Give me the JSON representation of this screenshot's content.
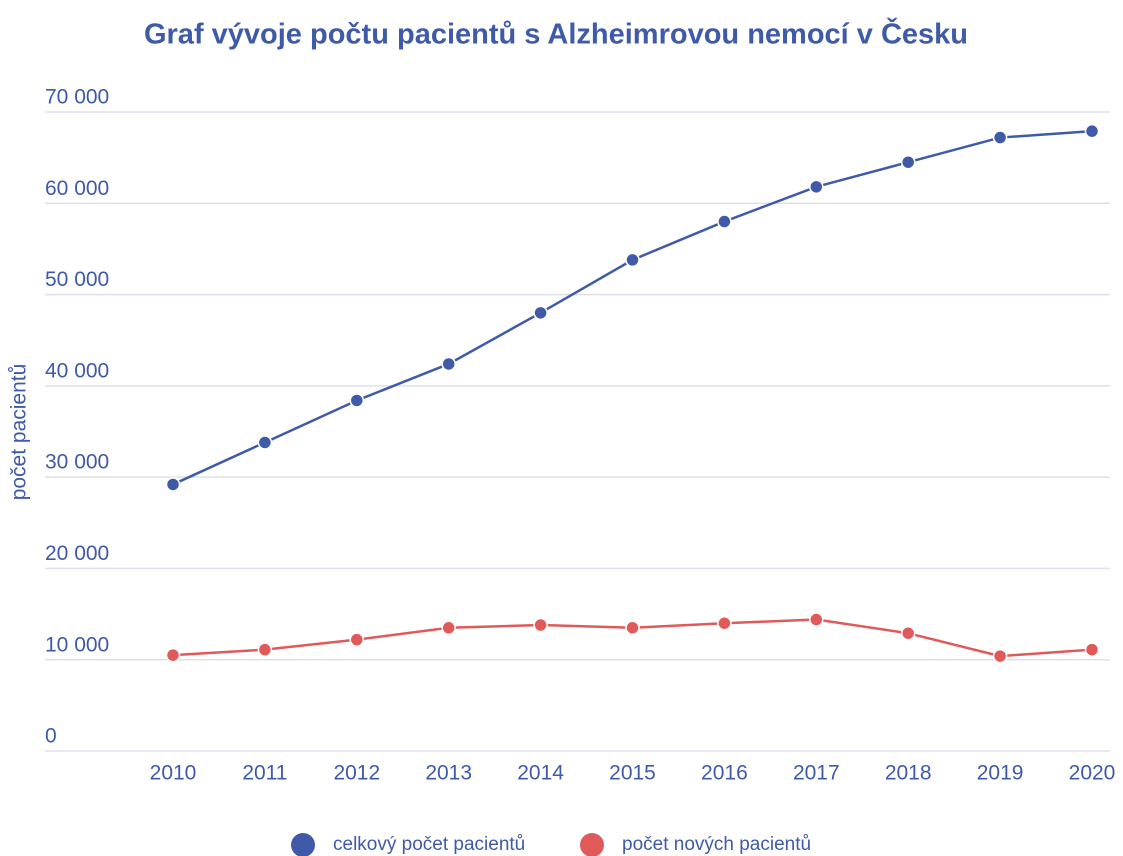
{
  "chart_data": {
    "type": "line",
    "title": "Graf vývoje počtu pacientů s Alzheimrovou nemocí v Česku",
    "y_label": "počet pacientů",
    "categories": [
      "2010",
      "2011",
      "2012",
      "2013",
      "2014",
      "2015",
      "2016",
      "2017",
      "2018",
      "2019",
      "2020"
    ],
    "series": [
      {
        "name": "celkový počet pacientů",
        "color": "#3f5aa8",
        "values": [
          29200,
          33800,
          38400,
          42400,
          48000,
          53800,
          58000,
          61800,
          64500,
          67200,
          67900
        ]
      },
      {
        "name": "počet nových pacientů",
        "color": "#e05a5a",
        "values": [
          10500,
          11100,
          12200,
          13500,
          13800,
          13500,
          14000,
          14400,
          12900,
          10400,
          11100
        ]
      }
    ],
    "ylim": [
      0,
      70000
    ],
    "yticks": [
      0,
      {
        "value": 10000,
        "label": "10 000"
      },
      {
        "value": 20000,
        "label": "20 000"
      },
      {
        "value": 30000,
        "label": "30 000"
      },
      {
        "value": 40000,
        "label": "40 000"
      },
      {
        "value": 50000,
        "label": "50 000"
      },
      {
        "value": 60000,
        "label": "60 000"
      },
      {
        "value": 70000,
        "label": "70 000"
      }
    ],
    "grid": true,
    "legend": "bottom"
  }
}
